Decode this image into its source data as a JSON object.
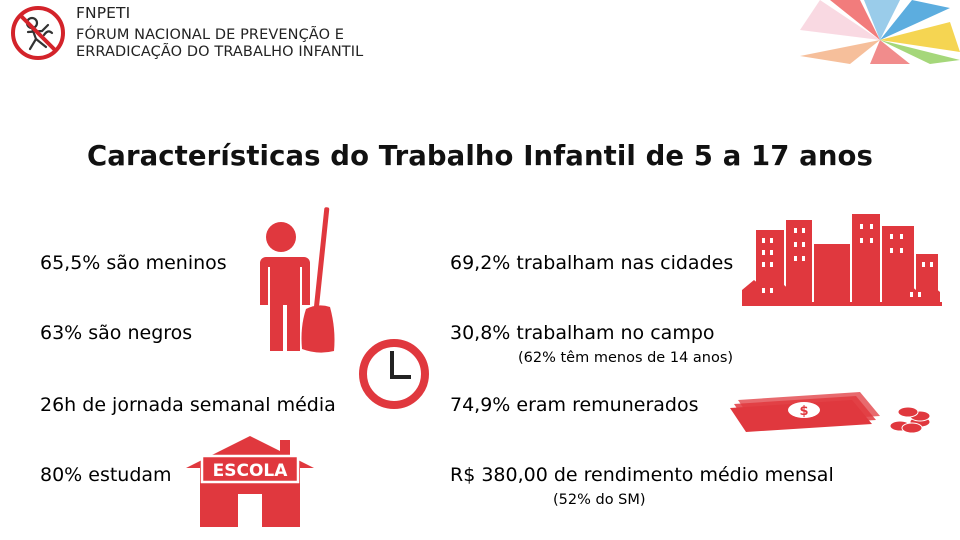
{
  "header": {
    "org_short": "FNPETI",
    "org_line1": "FÓRUM NACIONAL DE PREVENÇÃO E",
    "org_line2": "ERRADICAÇÃO DO TRABALHO INFANTIL"
  },
  "title": "Características do Trabalho Infantil de 5 a 17 anos",
  "stats_left": [
    "65,5% são meninos",
    "63% são negros",
    "26h de jornada semanal média",
    "80% estudam"
  ],
  "stats_right": [
    "69,2% trabalham nas cidades",
    "30,8% trabalham no campo",
    "74,9% eram remunerados",
    "R$ 380,00 de rendimento médio mensal"
  ],
  "notes": {
    "campo": "(62% têm menos de 14 anos)",
    "rendimento": "(52% do SM)"
  },
  "icons": {
    "school_sign": "ESCOLA",
    "money_symbol": "$"
  },
  "colors": {
    "accent_red": "#e0383e",
    "logo_red": "#d3232a"
  }
}
